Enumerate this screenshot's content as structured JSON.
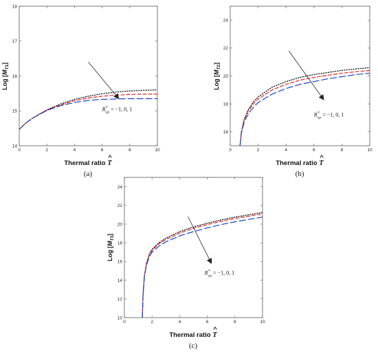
{
  "chart_data": [
    {
      "type": "line",
      "panel_label": "(a)",
      "xlabel": "Thermal ratio",
      "xsymbol": "T",
      "ylabel_prefix": "Log [",
      "ylabel_symbol": "M",
      "ylabel_sub": "T1",
      "ylabel_suffix": "]",
      "xlim": [
        0,
        10
      ],
      "ylim": [
        14,
        18
      ],
      "xticks": [
        0,
        2,
        4,
        6,
        8,
        10
      ],
      "yticks": [
        14,
        15,
        16,
        17,
        18
      ],
      "annotation_symbol": "R",
      "annotation_sub": "op",
      "annotation_sup": "*",
      "annotation_value": " = −1, 0, 1",
      "arrow": {
        "from": [
          5.0,
          16.4
        ],
        "to": [
          7.2,
          15.35
        ]
      },
      "annotation_pos": [
        6.0,
        15.0
      ],
      "series": [
        {
          "color": "#000000",
          "dash": "dot",
          "x": [
            0,
            0.5,
            1,
            2,
            3,
            4,
            5,
            6,
            7,
            8,
            9,
            10
          ],
          "y": [
            14.47,
            14.66,
            14.8,
            15.03,
            15.2,
            15.33,
            15.42,
            15.49,
            15.54,
            15.57,
            15.59,
            15.6
          ]
        },
        {
          "color": "#d62728",
          "dash": "dash",
          "x": [
            0,
            0.5,
            1,
            2,
            3,
            4,
            5,
            6,
            7,
            8,
            9,
            10
          ],
          "y": [
            14.47,
            14.66,
            14.8,
            15.02,
            15.17,
            15.29,
            15.37,
            15.42,
            15.45,
            15.47,
            15.48,
            15.48
          ]
        },
        {
          "color": "#1f3fbf",
          "dash": "longdash",
          "x": [
            0,
            0.5,
            1,
            2,
            3,
            4,
            5,
            6,
            7,
            8,
            9,
            10
          ],
          "y": [
            14.47,
            14.66,
            14.8,
            15.01,
            15.15,
            15.24,
            15.3,
            15.33,
            15.34,
            15.35,
            15.35,
            15.35
          ]
        }
      ]
    },
    {
      "type": "line",
      "panel_label": "(b)",
      "xlabel": "Thermal ratio",
      "xsymbol": "T",
      "ylabel_prefix": "Log [",
      "ylabel_symbol": "M",
      "ylabel_sub": "T2",
      "ylabel_suffix": "]",
      "xlim": [
        0,
        10
      ],
      "ylim": [
        15,
        25
      ],
      "xticks": [
        0,
        2,
        4,
        6,
        8,
        10
      ],
      "yticks": [
        16,
        18,
        20,
        22,
        24
      ],
      "annotation_symbol": "R",
      "annotation_sub": "op",
      "annotation_sup": "*",
      "annotation_value": " = −1, 0, 1",
      "arrow": {
        "from": [
          4.2,
          21.8
        ],
        "to": [
          6.7,
          18.3
        ]
      },
      "annotation_pos": [
        6.0,
        17.1
      ],
      "series": [
        {
          "color": "#000000",
          "dash": "dot",
          "x": [
            0.7,
            0.8,
            1,
            1.3,
            1.7,
            2,
            3,
            4,
            5,
            6,
            7,
            8,
            9,
            10
          ],
          "y": [
            15.0,
            16.0,
            16.9,
            17.6,
            18.2,
            18.5,
            19.2,
            19.6,
            19.9,
            20.1,
            20.25,
            20.4,
            20.5,
            20.6
          ]
        },
        {
          "color": "#d62728",
          "dash": "dash",
          "x": [
            0.7,
            0.8,
            1,
            1.3,
            1.7,
            2,
            3,
            4,
            5,
            6,
            7,
            8,
            9,
            10
          ],
          "y": [
            15.0,
            16.0,
            16.85,
            17.5,
            18.05,
            18.35,
            19.0,
            19.4,
            19.7,
            19.9,
            20.05,
            20.2,
            20.3,
            20.4
          ]
        },
        {
          "color": "#1f3fbf",
          "dash": "longdash",
          "x": [
            0.7,
            0.8,
            1,
            1.3,
            1.7,
            2,
            3,
            4,
            5,
            6,
            7,
            8,
            9,
            10
          ],
          "y": [
            15.0,
            15.9,
            16.7,
            17.3,
            17.8,
            18.1,
            18.7,
            19.1,
            19.4,
            19.6,
            19.8,
            19.95,
            20.1,
            20.2
          ]
        }
      ]
    },
    {
      "type": "line",
      "panel_label": "(c)",
      "xlabel": "Thermal ratio",
      "xsymbol": "T",
      "ylabel_prefix": "Log [",
      "ylabel_symbol": "M",
      "ylabel_sub": "T3",
      "ylabel_suffix": "]",
      "xlim": [
        0,
        10
      ],
      "ylim": [
        10,
        25
      ],
      "xticks": [
        0,
        2,
        4,
        6,
        8,
        10
      ],
      "yticks": [
        10,
        12,
        14,
        16,
        18,
        20,
        22,
        24
      ],
      "annotation_symbol": "R",
      "annotation_sub": "op",
      "annotation_sup": "*",
      "annotation_value": " = −1, 0, 1",
      "arrow": {
        "from": [
          4.6,
          20.8
        ],
        "to": [
          6.3,
          15.8
        ]
      },
      "annotation_pos": [
        5.8,
        14.6
      ],
      "series": [
        {
          "color": "#000000",
          "dash": "dot",
          "x": [
            1.3,
            1.35,
            1.45,
            1.6,
            1.8,
            2,
            2.5,
            3,
            4,
            5,
            6,
            7,
            8,
            9,
            10
          ],
          "y": [
            10.0,
            12.5,
            14.5,
            15.8,
            16.8,
            17.3,
            18.0,
            18.5,
            19.2,
            19.7,
            20.1,
            20.45,
            20.75,
            21.0,
            21.25
          ]
        },
        {
          "color": "#d62728",
          "dash": "dash",
          "x": [
            1.3,
            1.35,
            1.45,
            1.6,
            1.8,
            2,
            2.5,
            3,
            4,
            5,
            6,
            7,
            8,
            9,
            10
          ],
          "y": [
            10.0,
            12.5,
            14.5,
            15.75,
            16.7,
            17.2,
            17.9,
            18.35,
            19.05,
            19.55,
            19.95,
            20.3,
            20.6,
            20.85,
            21.1
          ]
        },
        {
          "color": "#1f3fbf",
          "dash": "longdash",
          "x": [
            1.3,
            1.35,
            1.45,
            1.6,
            1.8,
            2,
            2.5,
            3,
            4,
            5,
            6,
            7,
            8,
            9,
            10
          ],
          "y": [
            10.0,
            12.4,
            14.4,
            15.6,
            16.5,
            17.0,
            17.65,
            18.1,
            18.75,
            19.2,
            19.6,
            19.95,
            20.25,
            20.5,
            20.75
          ]
        }
      ]
    }
  ]
}
